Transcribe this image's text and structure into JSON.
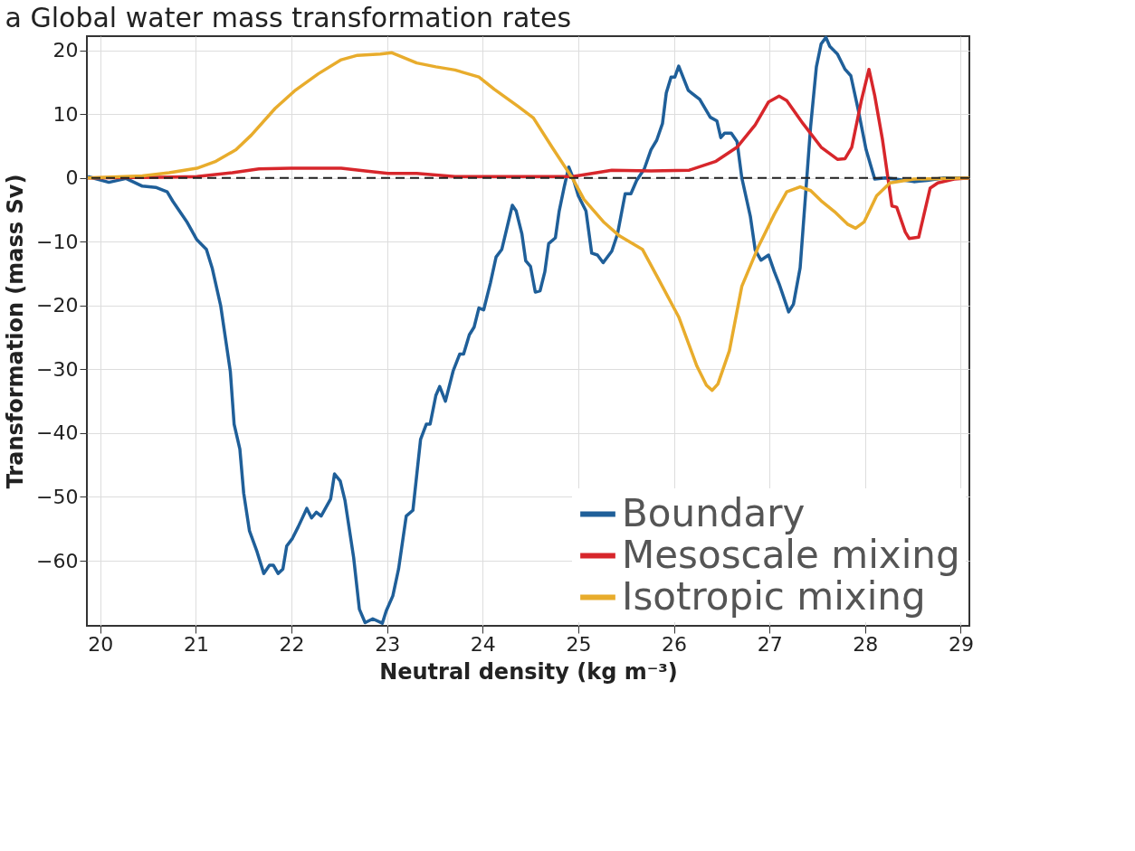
{
  "chart_data": {
    "type": "line",
    "title": "a Global water mass transformation rates",
    "xlabel": "Neutral density (kg m⁻³)",
    "ylabel": "Transformation (mass Sv)",
    "xlim": [
      19.86,
      29.09
    ],
    "xticks": [
      20,
      21,
      22,
      23,
      24,
      25,
      26,
      27,
      28,
      29
    ],
    "ylim": [
      -70.2,
      22.2
    ],
    "yticks": [
      -60,
      -50,
      -40,
      -30,
      -20,
      -10,
      0,
      10,
      20
    ],
    "grid": true,
    "legend": "bottom right",
    "line_style": "solid",
    "marker": "none",
    "ref_lines": [
      {
        "axis": "y",
        "value": 0,
        "color": "#222222",
        "line_style": "dashed"
      }
    ],
    "series": [
      {
        "name": "Boundary",
        "color": "#1f5f99",
        "x": [
          19.87,
          20.09,
          20.27,
          20.44,
          20.58,
          20.7,
          20.76,
          20.91,
          21.01,
          21.11,
          21.17,
          21.26,
          21.36,
          21.4,
          21.46,
          21.5,
          21.56,
          21.64,
          21.71,
          21.77,
          21.81,
          21.86,
          21.91,
          21.95,
          22.01,
          22.07,
          22.16,
          22.21,
          22.26,
          22.31,
          22.41,
          22.45,
          22.51,
          22.56,
          22.65,
          22.71,
          22.77,
          22.85,
          22.95,
          22.99,
          23.06,
          23.12,
          23.2,
          23.27,
          23.35,
          23.41,
          23.45,
          23.51,
          23.55,
          23.61,
          23.69,
          23.76,
          23.8,
          23.86,
          23.91,
          23.96,
          24.01,
          24.08,
          24.14,
          24.2,
          24.31,
          24.35,
          24.41,
          24.45,
          24.5,
          24.55,
          24.6,
          24.65,
          24.69,
          24.76,
          24.8,
          24.85,
          24.9,
          24.94,
          25.0,
          25.08,
          25.14,
          25.2,
          25.26,
          25.35,
          25.41,
          25.49,
          25.55,
          25.61,
          25.69,
          25.76,
          25.82,
          25.88,
          25.92,
          25.97,
          26.01,
          26.05,
          26.15,
          26.27,
          26.38,
          26.45,
          26.49,
          26.53,
          26.6,
          26.66,
          26.71,
          26.8,
          26.85,
          26.91,
          26.99,
          27.05,
          27.1,
          27.2,
          27.25,
          27.32,
          27.38,
          27.43,
          27.49,
          27.54,
          27.59,
          27.63,
          27.71,
          27.79,
          27.85,
          27.93,
          28.01,
          28.1,
          28.21,
          28.32,
          28.51,
          28.65,
          28.82,
          29.09
        ],
        "values": [
          0.2,
          -0.7,
          -0.1,
          -1.3,
          -1.5,
          -2.2,
          -3.7,
          -7.0,
          -9.7,
          -11.2,
          -14.1,
          -20.1,
          -30.3,
          -38.6,
          -42.5,
          -49.4,
          -55.3,
          -58.6,
          -62.0,
          -60.7,
          -60.7,
          -62.0,
          -61.3,
          -57.7,
          -56.5,
          -54.7,
          -51.8,
          -53.3,
          -52.4,
          -53.0,
          -50.3,
          -46.4,
          -47.5,
          -50.6,
          -59.5,
          -67.6,
          -69.7,
          -69.1,
          -69.8,
          -67.9,
          -65.5,
          -61.3,
          -53.0,
          -52.1,
          -41.0,
          -38.6,
          -38.6,
          -34.1,
          -32.7,
          -35.0,
          -30.3,
          -27.6,
          -27.6,
          -24.6,
          -23.4,
          -20.4,
          -20.7,
          -16.5,
          -12.4,
          -11.2,
          -4.3,
          -5.2,
          -8.8,
          -13.0,
          -13.9,
          -17.9,
          -17.7,
          -14.7,
          -10.3,
          -9.4,
          -5.2,
          -1.6,
          1.7,
          0.2,
          -2.8,
          -5.2,
          -11.8,
          -12.1,
          -13.3,
          -11.5,
          -8.8,
          -2.5,
          -2.5,
          -0.4,
          1.4,
          4.4,
          5.9,
          8.5,
          13.3,
          15.8,
          15.8,
          17.5,
          13.7,
          12.3,
          9.5,
          8.9,
          6.3,
          7.0,
          7.0,
          5.7,
          0.0,
          -6.1,
          -11.3,
          -12.9,
          -12.1,
          -14.7,
          -16.6,
          -21.0,
          -19.8,
          -14.1,
          -2.0,
          8.1,
          17.4,
          21.0,
          22.0,
          20.6,
          19.4,
          17.0,
          16.0,
          10.5,
          4.4,
          -0.2,
          0.0,
          -0.2,
          -0.6,
          -0.4,
          0.0,
          0.0
        ]
      },
      {
        "name": "Mesoscale mixing",
        "color": "#d7262b",
        "x": [
          19.87,
          20.64,
          21.01,
          21.38,
          21.66,
          21.99,
          22.52,
          22.77,
          23.01,
          23.31,
          23.71,
          24.33,
          24.94,
          25.35,
          25.76,
          26.16,
          26.44,
          26.66,
          26.85,
          26.99,
          27.1,
          27.18,
          27.35,
          27.54,
          27.71,
          27.79,
          27.86,
          27.96,
          28.04,
          28.1,
          28.18,
          28.28,
          28.33,
          28.42,
          28.46,
          28.56,
          28.61,
          28.68,
          28.76,
          28.93,
          29.09
        ],
        "values": [
          0.0,
          0.1,
          0.2,
          0.8,
          1.4,
          1.5,
          1.5,
          1.1,
          0.7,
          0.7,
          0.2,
          0.2,
          0.2,
          1.2,
          1.1,
          1.2,
          2.6,
          4.8,
          8.3,
          11.9,
          12.8,
          12.1,
          8.5,
          4.8,
          2.9,
          3.0,
          4.8,
          12.1,
          17.0,
          12.9,
          6.1,
          -4.4,
          -4.6,
          -8.5,
          -9.5,
          -9.3,
          -6.1,
          -1.6,
          -0.8,
          -0.2,
          0.0
        ]
      },
      {
        "name": "Isotropic mixing",
        "color": "#e8ac2c",
        "x": [
          19.87,
          20.44,
          20.72,
          21.01,
          21.21,
          21.42,
          21.58,
          21.83,
          22.03,
          22.28,
          22.52,
          22.69,
          22.93,
          23.05,
          23.31,
          23.51,
          23.71,
          23.96,
          24.12,
          24.37,
          24.53,
          24.73,
          24.94,
          25.06,
          25.27,
          25.43,
          25.67,
          25.84,
          26.05,
          26.24,
          26.34,
          26.4,
          26.46,
          26.58,
          26.71,
          26.88,
          27.05,
          27.18,
          27.32,
          27.43,
          27.54,
          27.68,
          27.82,
          27.9,
          27.99,
          28.12,
          28.26,
          28.51,
          29.09
        ],
        "values": [
          0.0,
          0.3,
          0.8,
          1.5,
          2.6,
          4.4,
          6.7,
          10.9,
          13.6,
          16.3,
          18.5,
          19.2,
          19.4,
          19.6,
          18.0,
          17.4,
          16.9,
          15.8,
          13.9,
          11.2,
          9.4,
          4.7,
          -0.1,
          -3.4,
          -7.0,
          -9.1,
          -11.2,
          -15.9,
          -21.8,
          -29.5,
          -32.5,
          -33.3,
          -32.3,
          -27.1,
          -17.0,
          -10.9,
          -5.7,
          -2.2,
          -1.4,
          -2.0,
          -3.6,
          -5.3,
          -7.3,
          -7.9,
          -6.9,
          -2.8,
          -0.8,
          -0.2,
          0.0
        ]
      }
    ]
  }
}
